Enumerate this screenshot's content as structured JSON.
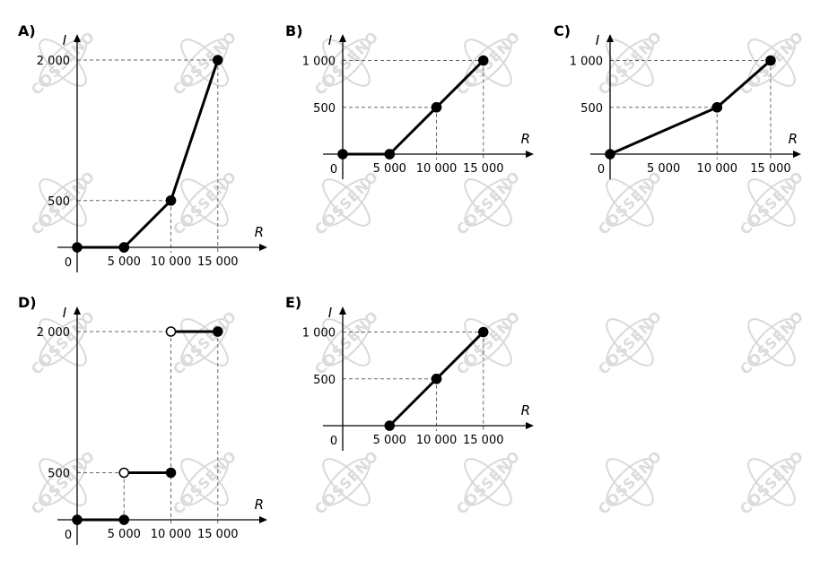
{
  "watermark": {
    "text": "COSSENO"
  },
  "chart_data": [
    {
      "type": "line",
      "label": "A)",
      "xlabel": "R",
      "ylabel": "I",
      "origin_label": "0",
      "xlim": [
        0,
        15000
      ],
      "ylim": [
        0,
        2000
      ],
      "x_ticks": [
        {
          "value": 5000,
          "label": "5 000"
        },
        {
          "value": 10000,
          "label": "10 000"
        },
        {
          "value": 15000,
          "label": "15 000"
        }
      ],
      "y_ticks": [
        {
          "value": 500,
          "label": "500"
        },
        {
          "value": 2000,
          "label": "2 000"
        }
      ],
      "segments": [
        {
          "x": [
            0,
            5000
          ],
          "y": [
            0,
            0
          ],
          "start": "closed",
          "end": "closed"
        },
        {
          "x": [
            5000,
            10000
          ],
          "y": [
            0,
            500
          ],
          "start": "closed",
          "end": "closed"
        },
        {
          "x": [
            10000,
            15000
          ],
          "y": [
            500,
            2000
          ],
          "start": "closed",
          "end": "closed"
        }
      ]
    },
    {
      "type": "line",
      "label": "B)",
      "xlabel": "R",
      "ylabel": "I",
      "origin_label": "0",
      "xlim": [
        0,
        15000
      ],
      "ylim": [
        0,
        1000
      ],
      "x_ticks": [
        {
          "value": 5000,
          "label": "5 000"
        },
        {
          "value": 10000,
          "label": "10 000"
        },
        {
          "value": 15000,
          "label": "15 000"
        }
      ],
      "y_ticks": [
        {
          "value": 500,
          "label": "500"
        },
        {
          "value": 1000,
          "label": "1 000"
        }
      ],
      "segments": [
        {
          "x": [
            0,
            5000
          ],
          "y": [
            0,
            0
          ],
          "start": "closed",
          "end": "closed"
        },
        {
          "x": [
            5000,
            10000
          ],
          "y": [
            0,
            500
          ],
          "start": "closed",
          "end": "closed"
        },
        {
          "x": [
            10000,
            15000
          ],
          "y": [
            500,
            1000
          ],
          "start": "closed",
          "end": "closed"
        }
      ]
    },
    {
      "type": "line",
      "label": "C)",
      "xlabel": "R",
      "ylabel": "I",
      "origin_label": "0",
      "xlim": [
        0,
        15000
      ],
      "ylim": [
        0,
        1000
      ],
      "x_ticks": [
        {
          "value": 5000,
          "label": "5 000"
        },
        {
          "value": 10000,
          "label": "10 000"
        },
        {
          "value": 15000,
          "label": "15 000"
        }
      ],
      "y_ticks": [
        {
          "value": 500,
          "label": "500"
        },
        {
          "value": 1000,
          "label": "1 000"
        }
      ],
      "segments": [
        {
          "x": [
            0,
            10000
          ],
          "y": [
            0,
            500
          ],
          "start": "closed",
          "end": "closed"
        },
        {
          "x": [
            10000,
            15000
          ],
          "y": [
            500,
            1000
          ],
          "start": "closed",
          "end": "closed"
        }
      ]
    },
    {
      "type": "line",
      "label": "D)",
      "xlabel": "R",
      "ylabel": "I",
      "origin_label": "0",
      "xlim": [
        0,
        15000
      ],
      "ylim": [
        0,
        2000
      ],
      "x_ticks": [
        {
          "value": 5000,
          "label": "5 000"
        },
        {
          "value": 10000,
          "label": "10 000"
        },
        {
          "value": 15000,
          "label": "15 000"
        }
      ],
      "y_ticks": [
        {
          "value": 500,
          "label": "500"
        },
        {
          "value": 2000,
          "label": "2 000"
        }
      ],
      "segments": [
        {
          "x": [
            0,
            5000
          ],
          "y": [
            0,
            0
          ],
          "start": "closed",
          "end": "closed"
        },
        {
          "x": [
            5000,
            10000
          ],
          "y": [
            500,
            500
          ],
          "start": "open",
          "end": "closed"
        },
        {
          "x": [
            10000,
            15000
          ],
          "y": [
            2000,
            2000
          ],
          "start": "open",
          "end": "closed"
        }
      ]
    },
    {
      "type": "line",
      "label": "E)",
      "xlabel": "R",
      "ylabel": "I",
      "origin_label": "0",
      "xlim": [
        0,
        15000
      ],
      "ylim": [
        0,
        1000
      ],
      "x_ticks": [
        {
          "value": 5000,
          "label": "5 000"
        },
        {
          "value": 10000,
          "label": "10 000"
        },
        {
          "value": 15000,
          "label": "15 000"
        }
      ],
      "y_ticks": [
        {
          "value": 500,
          "label": "500"
        },
        {
          "value": 1000,
          "label": "1 000"
        }
      ],
      "segments": [
        {
          "x": [
            5000,
            10000
          ],
          "y": [
            0,
            500
          ],
          "start": "closed",
          "end": "closed"
        },
        {
          "x": [
            10000,
            15000
          ],
          "y": [
            500,
            1000
          ],
          "start": "closed",
          "end": "closed"
        }
      ]
    }
  ]
}
